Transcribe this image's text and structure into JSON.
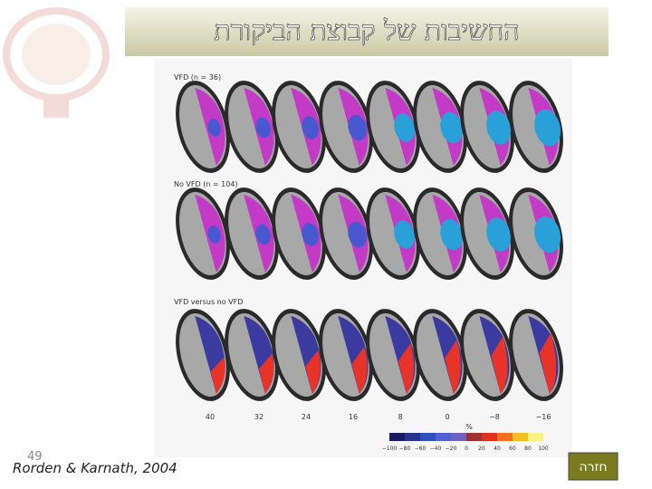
{
  "title": "החשיבות של קבוצת הביקורת",
  "figure": {
    "rows": [
      {
        "label": "VFD (n = 36)"
      },
      {
        "label": "No VFD (n = 104)"
      },
      {
        "label": "VFD versus no VFD"
      }
    ],
    "slice_labels": [
      "40",
      "32",
      "24",
      "16",
      "8",
      "0",
      "−8",
      "−16"
    ],
    "colorbar": {
      "unit": "%",
      "ticks": [
        "−100",
        "−80",
        "−60",
        "−40",
        "−20",
        "0",
        "20",
        "40",
        "60",
        "80",
        "100"
      ]
    }
  },
  "footer": {
    "slide_number": "49",
    "citation": "Rorden & Karnath, 2004",
    "button": "חזרה"
  }
}
